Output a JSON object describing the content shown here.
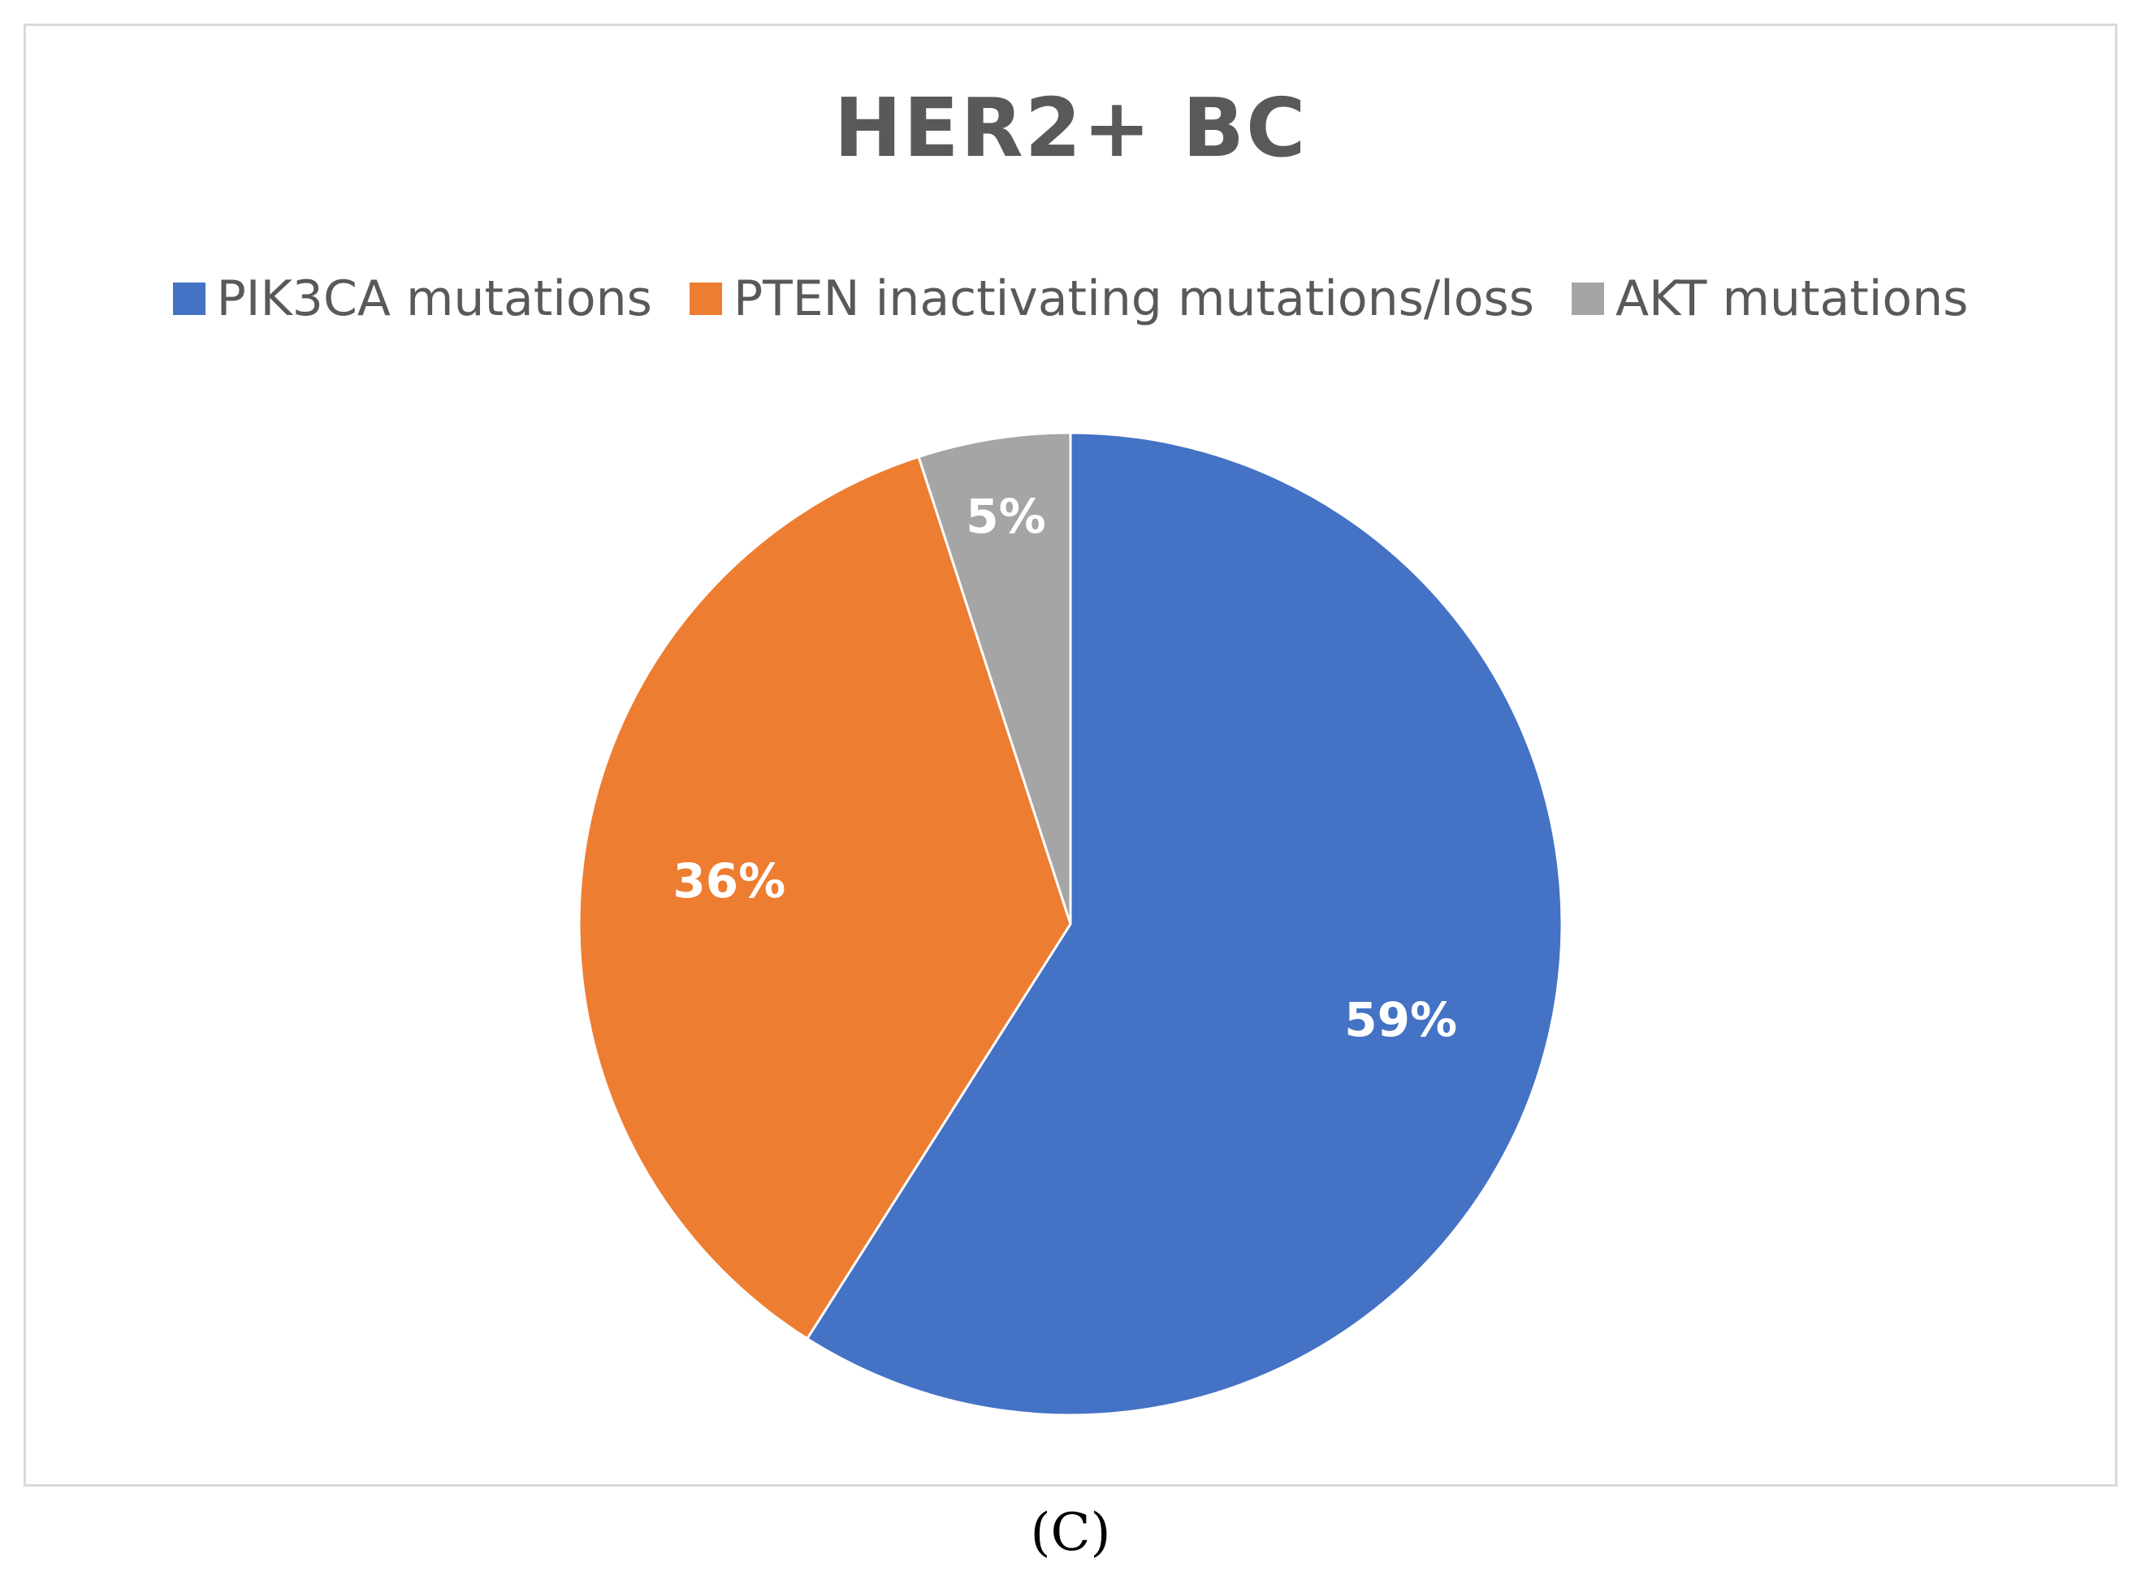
{
  "chart_data": {
    "type": "pie",
    "title": "HER2+ BC",
    "categories": [
      "PIK3CA mutations",
      "PTEN inactivating mutations/loss",
      "AKT mutations"
    ],
    "values": [
      59,
      36,
      5
    ],
    "data_labels": [
      "59%",
      "36%",
      "5%"
    ],
    "colors": [
      "#4472c4",
      "#ed7d31",
      "#a5a5a5"
    ],
    "legend_position": "top",
    "start_angle": "12 o'clock",
    "direction": "clockwise"
  },
  "caption": "(C)"
}
